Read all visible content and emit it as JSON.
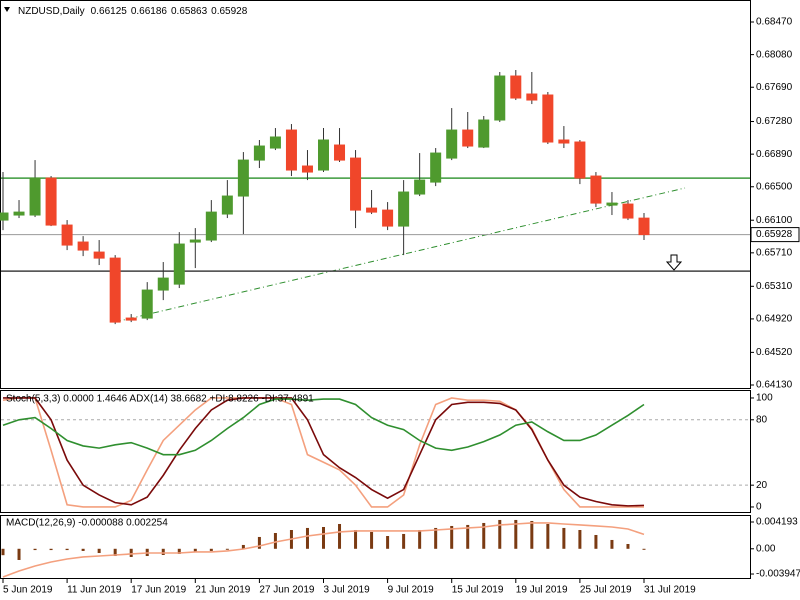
{
  "chart_data": [
    {
      "type": "candlestick",
      "title": "NZDUSD,Daily",
      "categories": [
        "5 Jun 2019",
        null,
        null,
        null,
        "11 Jun 2019",
        null,
        null,
        null,
        "17 Jun 2019",
        null,
        null,
        null,
        "21 Jun 2019",
        null,
        null,
        null,
        "27 Jun 2019",
        null,
        null,
        null,
        "3 Jul 2019",
        null,
        null,
        null,
        "9 Jul 2019",
        null,
        null,
        null,
        "15 Jul 2019",
        null,
        null,
        null,
        "19 Jul 2019",
        null,
        null,
        null,
        "25 Jul 2019",
        null,
        null,
        null,
        "31 Jul 2019"
      ],
      "open": [
        0.66102,
        0.66162,
        0.66162,
        0.66604,
        0.66042,
        0.65839,
        0.65719,
        0.65647,
        0.6493,
        0.6493,
        0.65265,
        0.65336,
        0.65839,
        0.65863,
        0.66174,
        0.66389,
        0.66819,
        0.66963,
        0.67178,
        0.66748,
        0.667,
        0.66999,
        0.66843,
        0.66245,
        0.66221,
        0.6603,
        0.66413,
        0.66556,
        0.66843,
        0.67178,
        0.66975,
        0.67298,
        0.67824,
        0.67609,
        0.67597,
        0.67059,
        0.67035,
        0.66628,
        0.66281,
        0.66293,
        0.66125
      ],
      "high": [
        0.66676,
        0.66341,
        0.66819,
        0.66628,
        0.66102,
        0.6591,
        0.65863,
        0.65683,
        0.64978,
        0.6536,
        0.656,
        0.65958,
        0.66006,
        0.66341,
        0.6658,
        0.66915,
        0.67059,
        0.67202,
        0.6725,
        0.66939,
        0.67202,
        0.67202,
        0.66939,
        0.66461,
        0.66317,
        0.6658,
        0.66903,
        0.66963,
        0.67441,
        0.67394,
        0.67346,
        0.67872,
        0.67896,
        0.67872,
        0.67633,
        0.67226,
        0.67059,
        0.66676,
        0.66437,
        0.66341,
        0.66186
      ],
      "low": [
        0.65982,
        0.66126,
        0.66138,
        0.6603,
        0.65743,
        0.65671,
        0.65564,
        0.64858,
        0.64882,
        0.64906,
        0.65145,
        0.65289,
        0.65528,
        0.65839,
        0.66126,
        0.65934,
        0.66724,
        0.66939,
        0.66628,
        0.6658,
        0.66676,
        0.66796,
        0.66006,
        0.66174,
        0.65982,
        0.65683,
        0.66389,
        0.66508,
        0.66819,
        0.66963,
        0.66963,
        0.67274,
        0.67537,
        0.67489,
        0.67011,
        0.66963,
        0.66532,
        0.66257,
        0.66162,
        0.66102,
        0.65863
      ],
      "close": [
        0.66186,
        0.66197,
        0.66604,
        0.66042,
        0.65803,
        0.65743,
        0.65647,
        0.64882,
        0.64906,
        0.65265,
        0.65408,
        0.65815,
        0.65863,
        0.66197,
        0.66389,
        0.66819,
        0.66987,
        0.67095,
        0.667,
        0.66676,
        0.67059,
        0.66819,
        0.66221,
        0.66197,
        0.6603,
        0.66437,
        0.6658,
        0.66903,
        0.67178,
        0.66987,
        0.67298,
        0.67824,
        0.67561,
        0.67537,
        0.67035,
        0.67023,
        0.66604,
        0.66305,
        0.66305,
        0.66126,
        0.65928
      ],
      "up_color": "#4f9a2e",
      "down_color": "#f0462a",
      "ylim": [
        0.64094,
        0.68733
      ],
      "yticks": [
        {
          "value": 0.6847,
          "label": "0.68470"
        },
        {
          "value": 0.6808,
          "label": "0.68080"
        },
        {
          "value": 0.6769,
          "label": "0.67690"
        },
        {
          "value": 0.6728,
          "label": "0.67280"
        },
        {
          "value": 0.6689,
          "label": "0.66890"
        },
        {
          "value": 0.665,
          "label": "0.66500"
        },
        {
          "value": 0.661,
          "label": "0.66100"
        },
        {
          "value": 0.6571,
          "label": "0.65710"
        },
        {
          "value": 0.6531,
          "label": "0.65310"
        },
        {
          "value": 0.6492,
          "label": "0.64920"
        },
        {
          "value": 0.6452,
          "label": "0.64520"
        },
        {
          "value": 0.6413,
          "label": "0.64130"
        }
      ],
      "levels": [
        {
          "value": 0.66604,
          "color": "#3c9a3c"
        },
        {
          "value": 0.65492,
          "color": "#404040"
        }
      ]
    },
    {
      "type": "line",
      "title": "Stoch(5,3,3) 0.0000 1.4646 ADX(14) 38.6682 +DI:8.8226 -DI:37.4891",
      "series": [
        {
          "color": "#f4a07e",
          "values": [
            98,
            100,
            100,
            52,
            2,
            0,
            0,
            0,
            6,
            34,
            61,
            75,
            89,
            100,
            100,
            100,
            100,
            100,
            94,
            48,
            41,
            34,
            20,
            0,
            0,
            11,
            57,
            94,
            100,
            98,
            98,
            97,
            89,
            72,
            43,
            16,
            0,
            0,
            0,
            0,
            0
          ]
        },
        {
          "color": "#7a0a0a",
          "values": [
            100,
            100,
            100,
            80,
            43,
            20,
            11,
            4,
            2,
            9,
            29,
            52,
            72,
            89,
            98,
            100,
            100,
            100,
            100,
            80,
            48,
            36,
            27,
            16,
            8,
            16,
            48,
            80,
            94,
            96,
            96,
            95,
            89,
            71,
            43,
            20,
            9,
            5,
            2,
            1,
            1.4646
          ]
        },
        {
          "color": "#2f8f2f",
          "values": [
            75,
            80,
            82,
            72,
            61,
            56,
            54,
            57,
            59,
            54,
            48,
            48,
            52,
            61,
            72,
            82,
            94,
            99,
            99,
            98,
            99,
            99,
            94,
            82,
            75,
            71,
            61,
            54,
            52,
            55,
            60,
            66,
            75,
            78,
            69,
            61,
            61,
            66,
            75,
            84,
            94
          ]
        }
      ],
      "ylim": [
        -3.7,
        106.4
      ],
      "yticks": [
        100,
        80,
        20,
        0
      ],
      "levels": [
        80,
        20
      ]
    },
    {
      "type": "macd",
      "title": "MACD(12,26,9) -0.000088 0.002254",
      "series": [
        {
          "type": "bar",
          "color": "#7a3a12",
          "values": [
            -0.001,
            -0.00175,
            -0.0002,
            -0.0002,
            -0.0002,
            -0.00034,
            -0.00066,
            -0.00113,
            -0.00128,
            -0.00113,
            -0.00097,
            -0.00081,
            -0.0005,
            -0.00034,
            -3e-05,
            0.0006,
            0.00185,
            0.00247,
            0.00294,
            0.00326,
            0.00341,
            0.00388,
            0.00294,
            0.00263,
            0.002,
            0.00232,
            0.00294,
            0.00326,
            0.00357,
            0.00373,
            0.00404,
            0.00451,
            0.00451,
            0.00435,
            0.00388,
            0.00326,
            0.00294,
            0.00216,
            0.00138,
            0.00075,
            -8.8e-05
          ]
        },
        {
          "type": "line",
          "color": "#f4a07e",
          "values": [
            -0.00442,
            -0.00348,
            -0.00269,
            -0.00207,
            -0.0016,
            -0.00128,
            -0.00113,
            -0.00097,
            -0.00081,
            -0.00066,
            -0.00066,
            -0.00066,
            -0.0005,
            -0.0005,
            -0.00034,
            -3e-05,
            0.00044,
            0.00106,
            0.00153,
            0.002,
            0.00232,
            0.00263,
            0.00279,
            0.00279,
            0.00279,
            0.00279,
            0.00279,
            0.00294,
            0.0031,
            0.00326,
            0.00341,
            0.00373,
            0.00388,
            0.00404,
            0.00404,
            0.00388,
            0.00373,
            0.00357,
            0.00341,
            0.0031,
            0.002254
          ]
        }
      ],
      "ylim": [
        -0.00457,
        0.00513
      ],
      "yticks": [
        0.004193,
        {
          "value": 0,
          "label": "0.00"
        },
        -0.003947
      ]
    }
  ]
}
